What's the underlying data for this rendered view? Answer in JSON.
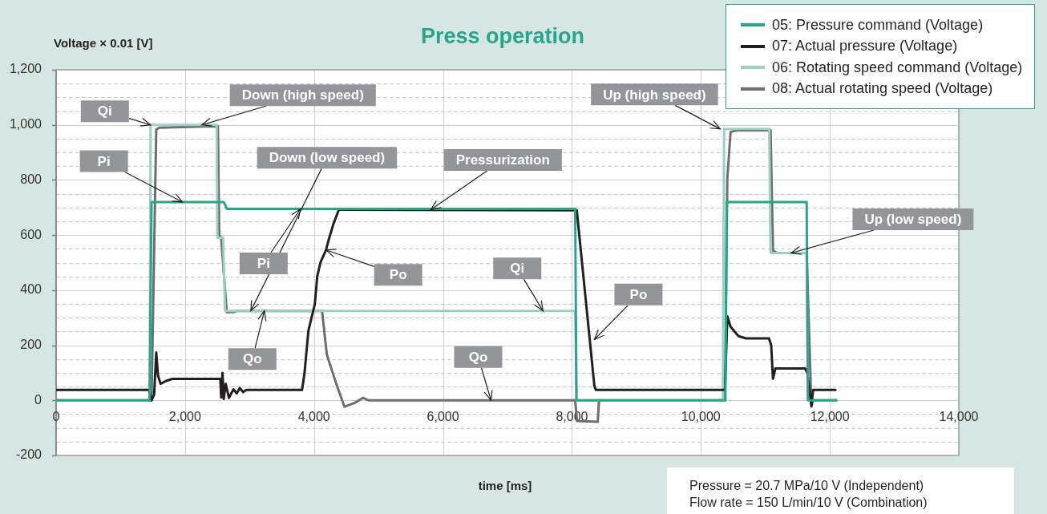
{
  "chart_data": {
    "type": "line",
    "title": "Press operation",
    "xlabel": "time [ms]",
    "ylabel": "Voltage × 0.01 [V]",
    "xlim": [
      0,
      14000
    ],
    "ylim": [
      -200,
      1200
    ],
    "xticks": [
      {
        "value": 0,
        "label": "0"
      },
      {
        "value": 2000,
        "label": "2,000"
      },
      {
        "value": 4000,
        "label": "4,000"
      },
      {
        "value": 6000,
        "label": "6,000"
      },
      {
        "value": 8000,
        "label": "8,000"
      },
      {
        "value": 10000,
        "label": "10,000"
      },
      {
        "value": 12000,
        "label": "12,000"
      },
      {
        "value": 14000,
        "label": "14,000"
      }
    ],
    "yticks": [
      {
        "value": -200,
        "label": "-200"
      },
      {
        "value": -150,
        "label": null
      },
      {
        "value": -100,
        "label": null
      },
      {
        "value": -50,
        "label": null
      },
      {
        "value": 0,
        "label": "0"
      },
      {
        "value": 50,
        "label": null
      },
      {
        "value": 100,
        "label": null
      },
      {
        "value": 150,
        "label": null
      },
      {
        "value": 200,
        "label": "200"
      },
      {
        "value": 250,
        "label": null
      },
      {
        "value": 300,
        "label": null
      },
      {
        "value": 350,
        "label": null
      },
      {
        "value": 400,
        "label": "400"
      },
      {
        "value": 450,
        "label": null
      },
      {
        "value": 500,
        "label": null
      },
      {
        "value": 550,
        "label": null
      },
      {
        "value": 600,
        "label": "600"
      },
      {
        "value": 650,
        "label": null
      },
      {
        "value": 700,
        "label": null
      },
      {
        "value": 750,
        "label": null
      },
      {
        "value": 800,
        "label": "800"
      },
      {
        "value": 850,
        "label": null
      },
      {
        "value": 900,
        "label": null
      },
      {
        "value": 950,
        "label": null
      },
      {
        "value": 1000,
        "label": "1,000"
      },
      {
        "value": 1050,
        "label": null
      },
      {
        "value": 1100,
        "label": null
      },
      {
        "value": 1150,
        "label": null
      },
      {
        "value": 1200,
        "label": "1,200"
      }
    ],
    "grid": true,
    "legend": "top right",
    "series": [
      {
        "name": "05: Pressure command (Voltage)",
        "color": "#2aa58c",
        "x": [
          0,
          1450,
          1480,
          2600,
          2650,
          8050,
          8070,
          10380,
          10400,
          11640,
          11660,
          12100
        ],
        "values": [
          0,
          0,
          720,
          720,
          695,
          695,
          0,
          0,
          720,
          720,
          0,
          0
        ]
      },
      {
        "name": "07: Actual pressure (Voltage)",
        "color": "#231f20",
        "x": [
          0,
          1440,
          1480,
          1520,
          1553,
          1580,
          1620,
          1700,
          1800,
          2547,
          2560,
          2580,
          2600,
          2630,
          2680,
          2750,
          2800,
          2850,
          2900,
          2950,
          3814,
          3851,
          3913,
          4012,
          4050,
          4099,
          4186,
          4224,
          4300,
          4385,
          4450,
          8075,
          8348,
          8370,
          10373,
          10410,
          10460,
          10584,
          10700,
          11056,
          11090,
          11118,
          11155,
          11615,
          11650,
          11714,
          11740,
          12087
        ],
        "values": [
          38,
          38,
          0,
          20,
          174,
          90,
          60,
          70,
          78,
          78,
          10,
          100,
          5,
          60,
          9,
          40,
          25,
          45,
          30,
          38,
          38,
          96,
          253,
          349,
          450,
          500,
          546,
          580,
          640,
          692,
          692,
          690,
          52,
          38,
          38,
          305,
          267,
          233,
          225,
          225,
          200,
          78,
          116,
          116,
          100,
          -20,
          38,
          38
        ]
      },
      {
        "name": "06: Rotating speed command (Voltage)",
        "color": "#9dd0c4",
        "x": [
          0,
          1450,
          1465,
          2490,
          2500,
          2590,
          2620,
          8050,
          8070,
          10340,
          10360,
          11060,
          11080,
          11640,
          11660,
          12100
        ],
        "values": [
          0,
          0,
          1000,
          1000,
          590,
          590,
          325,
          325,
          0,
          0,
          985,
          985,
          535,
          535,
          0,
          0
        ]
      },
      {
        "name": "08: Actual rotating speed (Voltage)",
        "color": "#6d6e71",
        "x": [
          0,
          1480,
          1553,
          1600,
          2509,
          2530,
          2560,
          2646,
          2750,
          2800,
          4124,
          4199,
          4348,
          4472,
          4634,
          4758,
          4850,
          8050,
          8080,
          8400,
          8420,
          10373,
          10410,
          10460,
          10550,
          11081,
          11118,
          11180,
          11640,
          11714,
          11740,
          12100
        ],
        "values": [
          0,
          0,
          983,
          990,
          995,
          600,
          590,
          320,
          320,
          325,
          325,
          166,
          58,
          -23,
          -9,
          9,
          0,
          0,
          -75,
          -78,
          0,
          0,
          805,
          974,
          980,
          980,
          544,
          535,
          535,
          -23,
          0,
          0
        ]
      }
    ],
    "annotations": [
      {
        "text": "Qi",
        "x": 1465,
        "y": 1000
      },
      {
        "text": "Down (high speed)",
        "x": 2260,
        "y": 1000
      },
      {
        "text": "Pi",
        "x": 1960,
        "y": 720
      },
      {
        "text": "Down (low speed)",
        "x": 3020,
        "y": 325
      },
      {
        "text": "Pressurization",
        "x": 5810,
        "y": 692
      },
      {
        "text": "Pi",
        "x": 3790,
        "y": 695
      },
      {
        "text": "Po",
        "x": 4186,
        "y": 546
      },
      {
        "text": "Qi",
        "x": 7550,
        "y": 325
      },
      {
        "text": "Qo",
        "x": 3230,
        "y": 325
      },
      {
        "text": "Qo",
        "x": 6745,
        "y": 0
      },
      {
        "text": "Po",
        "x": 8348,
        "y": 221
      },
      {
        "text": "Up (high speed)",
        "x": 10300,
        "y": 985
      },
      {
        "text": "Up (low speed)",
        "x": 11400,
        "y": 535
      },
      "Pressure = 20.7 MPa/10 V (Independent)",
      "Flow rate = 150 L/min/10 V (Combination)"
    ]
  }
}
